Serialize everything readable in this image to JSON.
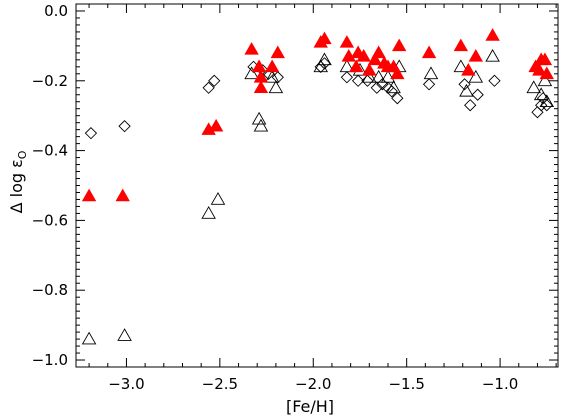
{
  "chart_data": {
    "type": "scatter",
    "title": "",
    "xlabel": "[Fe/H]",
    "ylabel": "Δ log ε",
    "ylabel_subscript": "O",
    "xlim": [
      -3.27,
      -0.69
    ],
    "ylim": [
      -1.02,
      0.02
    ],
    "grid": false,
    "legend": "none",
    "x_ticks": [
      -3.0,
      -2.5,
      -2.0,
      -1.5,
      -1.0
    ],
    "x_tick_labels": [
      "−3.0",
      "−2.5",
      "−2.0",
      "−1.5",
      "−1.0"
    ],
    "y_ticks": [
      0.0,
      -0.2,
      -0.4,
      -0.6,
      -0.8,
      -1.0
    ],
    "y_tick_labels": [
      "0.0",
      "−0.2",
      "−0.4",
      "−0.6",
      "−0.8",
      "−1.0"
    ],
    "series": [
      {
        "marker": "filled-triangle",
        "color": "#ff0000",
        "points": [
          [
            -3.2,
            -0.53
          ],
          [
            -3.02,
            -0.53
          ],
          [
            -2.56,
            -0.34
          ],
          [
            -2.52,
            -0.33
          ],
          [
            -2.33,
            -0.11
          ],
          [
            -2.29,
            -0.16
          ],
          [
            -2.28,
            -0.19
          ],
          [
            -2.28,
            -0.22
          ],
          [
            -2.22,
            -0.16
          ],
          [
            -2.19,
            -0.12
          ],
          [
            -1.96,
            -0.09
          ],
          [
            -1.94,
            -0.08
          ],
          [
            -1.82,
            -0.09
          ],
          [
            -1.81,
            -0.13
          ],
          [
            -1.77,
            -0.16
          ],
          [
            -1.76,
            -0.12
          ],
          [
            -1.73,
            -0.13
          ],
          [
            -1.7,
            -0.17
          ],
          [
            -1.67,
            -0.14
          ],
          [
            -1.65,
            -0.12
          ],
          [
            -1.62,
            -0.15
          ],
          [
            -1.6,
            -0.16
          ],
          [
            -1.57,
            -0.16
          ],
          [
            -1.55,
            -0.18
          ],
          [
            -1.54,
            -0.1
          ],
          [
            -1.38,
            -0.12
          ],
          [
            -1.21,
            -0.1
          ],
          [
            -1.17,
            -0.17
          ],
          [
            -1.13,
            -0.13
          ],
          [
            -1.04,
            -0.07
          ],
          [
            -0.81,
            -0.16
          ],
          [
            -0.79,
            -0.17
          ],
          [
            -0.78,
            -0.14
          ],
          [
            -0.76,
            -0.14
          ],
          [
            -0.75,
            -0.18
          ]
        ]
      },
      {
        "marker": "open-triangle",
        "color": "#000000",
        "points": [
          [
            -3.2,
            -0.94
          ],
          [
            -3.01,
            -0.93
          ],
          [
            -2.56,
            -0.58
          ],
          [
            -2.51,
            -0.54
          ],
          [
            -2.33,
            -0.18
          ],
          [
            -2.29,
            -0.31
          ],
          [
            -2.28,
            -0.33
          ],
          [
            -2.22,
            -0.19
          ],
          [
            -2.2,
            -0.22
          ],
          [
            -1.96,
            -0.16
          ],
          [
            -1.94,
            -0.14
          ],
          [
            -1.82,
            -0.16
          ],
          [
            -1.75,
            -0.17
          ],
          [
            -1.7,
            -0.19
          ],
          [
            -1.65,
            -0.19
          ],
          [
            -1.6,
            -0.19
          ],
          [
            -1.57,
            -0.22
          ],
          [
            -1.54,
            -0.16
          ],
          [
            -1.37,
            -0.18
          ],
          [
            -1.21,
            -0.16
          ],
          [
            -1.18,
            -0.23
          ],
          [
            -1.13,
            -0.19
          ],
          [
            -1.04,
            -0.13
          ],
          [
            -0.82,
            -0.22
          ],
          [
            -0.78,
            -0.24
          ],
          [
            -0.76,
            -0.2
          ],
          [
            -0.75,
            -0.26
          ]
        ]
      },
      {
        "marker": "open-diamond",
        "color": "#000000",
        "points": [
          [
            -3.19,
            -0.35
          ],
          [
            -3.01,
            -0.33
          ],
          [
            -2.56,
            -0.22
          ],
          [
            -2.53,
            -0.2
          ],
          [
            -2.32,
            -0.16
          ],
          [
            -2.27,
            -0.17
          ],
          [
            -2.24,
            -0.18
          ],
          [
            -2.19,
            -0.19
          ],
          [
            -1.96,
            -0.16
          ],
          [
            -1.94,
            -0.15
          ],
          [
            -1.82,
            -0.19
          ],
          [
            -1.76,
            -0.2
          ],
          [
            -1.71,
            -0.2
          ],
          [
            -1.66,
            -0.22
          ],
          [
            -1.63,
            -0.21
          ],
          [
            -1.6,
            -0.22
          ],
          [
            -1.58,
            -0.23
          ],
          [
            -1.55,
            -0.25
          ],
          [
            -1.38,
            -0.21
          ],
          [
            -1.19,
            -0.21
          ],
          [
            -1.16,
            -0.27
          ],
          [
            -1.12,
            -0.24
          ],
          [
            -1.03,
            -0.2
          ],
          [
            -0.8,
            -0.29
          ],
          [
            -0.78,
            -0.27
          ],
          [
            -0.77,
            -0.25
          ],
          [
            -0.75,
            -0.27
          ]
        ]
      }
    ]
  }
}
